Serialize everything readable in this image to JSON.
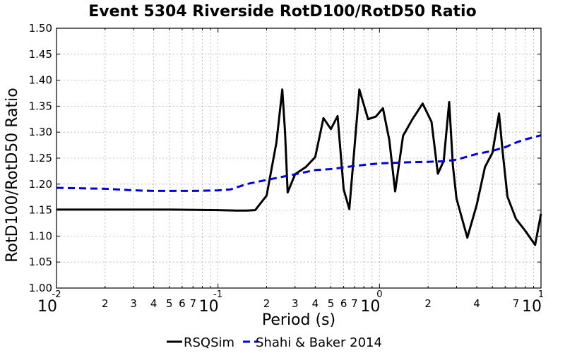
{
  "chart_data": {
    "type": "line",
    "title": "Event 5304 Riverside RotD100/RotD50 Ratio",
    "xlabel": "Period (s)",
    "ylabel": "RotD100/RotD50 Ratio",
    "xscale": "log",
    "xlim": [
      0.01,
      10
    ],
    "ylim": [
      1.0,
      1.5
    ],
    "grid": true,
    "legend_position": "bottom-center",
    "y_ticks": [
      "1.00",
      "1.05",
      "1.10",
      "1.15",
      "1.20",
      "1.25",
      "1.30",
      "1.35",
      "1.40",
      "1.45",
      "1.50"
    ],
    "x_major_ticks": [
      {
        "value": 0.01,
        "base": "10",
        "exp": "-2"
      },
      {
        "value": 0.1,
        "base": "10",
        "exp": "-1"
      },
      {
        "value": 1,
        "base": "10",
        "exp": "0"
      },
      {
        "value": 10,
        "base": "10",
        "exp": "1"
      }
    ],
    "x_minor_labels": [
      "2",
      "3",
      "4",
      "5",
      "6",
      "7"
    ],
    "series": [
      {
        "name": "RSQSim",
        "color": "#000000",
        "style": "solid",
        "x": [
          0.01,
          0.02,
          0.05,
          0.1,
          0.13,
          0.15,
          0.17,
          0.2,
          0.23,
          0.25,
          0.26,
          0.27,
          0.3,
          0.35,
          0.4,
          0.45,
          0.5,
          0.55,
          0.6,
          0.65,
          0.75,
          0.85,
          0.95,
          1.05,
          1.15,
          1.25,
          1.4,
          1.6,
          1.85,
          2.1,
          2.3,
          2.5,
          2.7,
          2.85,
          3.0,
          3.5,
          4.0,
          4.5,
          5.0,
          5.5,
          5.8,
          6.2,
          7.0,
          8.0,
          9.2,
          10.0
        ],
        "values": [
          1.151,
          1.151,
          1.151,
          1.15,
          1.149,
          1.149,
          1.15,
          1.178,
          1.28,
          1.382,
          1.3,
          1.184,
          1.219,
          1.233,
          1.252,
          1.327,
          1.306,
          1.331,
          1.19,
          1.152,
          1.382,
          1.325,
          1.33,
          1.346,
          1.285,
          1.186,
          1.293,
          1.325,
          1.355,
          1.32,
          1.22,
          1.245,
          1.358,
          1.235,
          1.172,
          1.097,
          1.16,
          1.233,
          1.26,
          1.336,
          1.26,
          1.176,
          1.133,
          1.11,
          1.083,
          1.143
        ]
      },
      {
        "name": "Shahi & Baker 2014",
        "color": "#0000dd",
        "style": "dashed",
        "x": [
          0.01,
          0.02,
          0.03,
          0.04,
          0.05,
          0.07,
          0.1,
          0.12,
          0.15,
          0.2,
          0.3,
          0.4,
          0.5,
          0.6,
          0.7,
          0.8,
          1.0,
          1.5,
          2.0,
          2.5,
          3.0,
          4.0,
          5.0,
          6.0,
          7.0,
          8.0,
          10.0
        ],
        "values": [
          1.193,
          1.191,
          1.188,
          1.187,
          1.187,
          1.187,
          1.188,
          1.19,
          1.2,
          1.208,
          1.219,
          1.227,
          1.229,
          1.232,
          1.235,
          1.237,
          1.24,
          1.242,
          1.243,
          1.244,
          1.247,
          1.258,
          1.264,
          1.271,
          1.28,
          1.286,
          1.294
        ]
      }
    ]
  }
}
